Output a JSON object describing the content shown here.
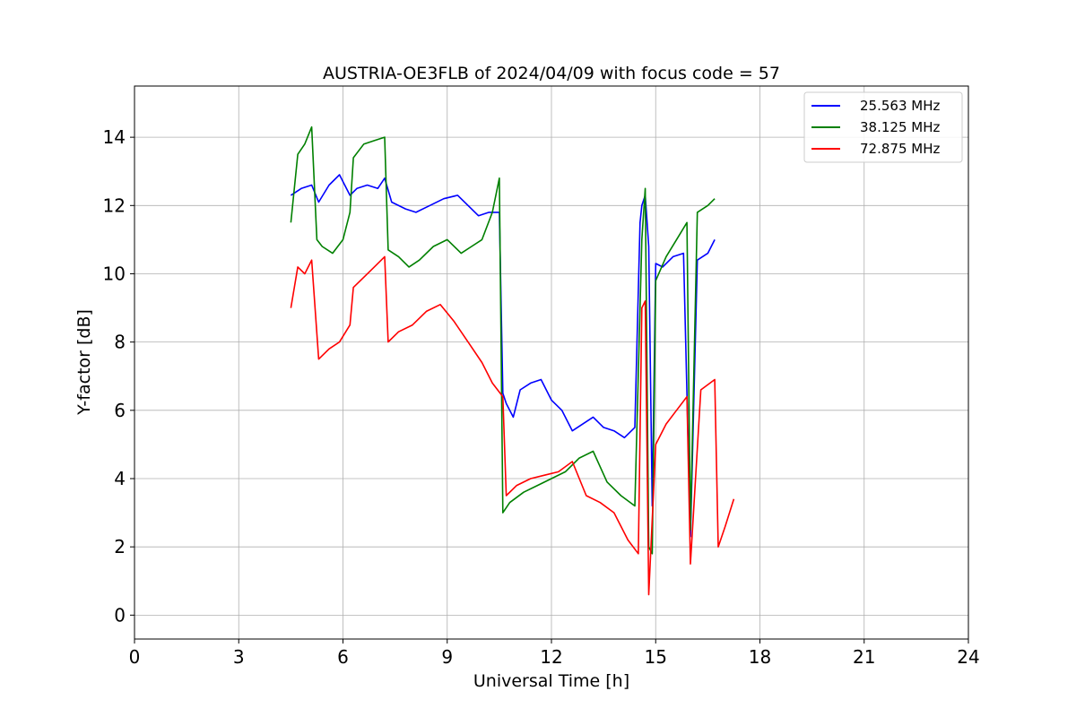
{
  "chart_data": {
    "type": "line",
    "title": "AUSTRIA-OE3FLB of 2024/04/09 with focus code = 57",
    "xlabel": "Universal Time [h]",
    "ylabel": "Y-factor [dB]",
    "xlim": [
      0,
      24
    ],
    "ylim": [
      -0.7,
      15.5
    ],
    "xticks": [
      0,
      3,
      6,
      9,
      12,
      15,
      18,
      21,
      24
    ],
    "yticks": [
      0,
      2,
      4,
      6,
      8,
      10,
      12,
      14
    ],
    "grid": true,
    "legend_position": "top-right",
    "series": [
      {
        "name": "25.563 MHz",
        "color": "#0000ff",
        "x": [
          4.5,
          4.8,
          5.1,
          5.3,
          5.6,
          5.9,
          6.2,
          6.4,
          6.7,
          7.0,
          7.2,
          7.4,
          7.8,
          8.1,
          8.5,
          8.9,
          9.3,
          9.6,
          9.9,
          10.2,
          10.5,
          10.6,
          10.7,
          10.9,
          11.1,
          11.4,
          11.7,
          12.0,
          12.3,
          12.6,
          12.9,
          13.2,
          13.5,
          13.8,
          14.1,
          14.4,
          14.55,
          14.6,
          14.7,
          14.8,
          14.9,
          15.0,
          15.2,
          15.5,
          15.8,
          16.0,
          16.2,
          16.5,
          16.7
        ],
        "y": [
          12.3,
          12.5,
          12.6,
          12.1,
          12.6,
          12.9,
          12.3,
          12.5,
          12.6,
          12.5,
          12.8,
          12.1,
          11.9,
          11.8,
          12.0,
          12.2,
          12.3,
          12.0,
          11.7,
          11.8,
          11.8,
          6.5,
          6.2,
          5.8,
          6.6,
          6.8,
          6.9,
          6.3,
          6.0,
          5.4,
          5.6,
          5.8,
          5.5,
          5.4,
          5.2,
          5.5,
          11.5,
          12.0,
          12.3,
          10.8,
          3.2,
          10.3,
          10.2,
          10.5,
          10.6,
          2.3,
          10.4,
          10.6,
          11.0
        ]
      },
      {
        "name": "38.125 MHz",
        "color": "#008000",
        "x": [
          4.5,
          4.7,
          4.9,
          5.1,
          5.25,
          5.4,
          5.7,
          6.0,
          6.2,
          6.3,
          6.6,
          6.9,
          7.2,
          7.3,
          7.6,
          7.9,
          8.2,
          8.6,
          9.0,
          9.4,
          9.7,
          10.0,
          10.3,
          10.5,
          10.6,
          10.8,
          11.2,
          11.6,
          12.0,
          12.4,
          12.8,
          13.2,
          13.6,
          14.0,
          14.4,
          14.6,
          14.7,
          14.8,
          14.9,
          15.0,
          15.3,
          15.6,
          15.9,
          16.0,
          16.2,
          16.5,
          16.7
        ],
        "y": [
          11.5,
          13.5,
          13.8,
          14.3,
          11.0,
          10.8,
          10.6,
          11.0,
          11.8,
          13.4,
          13.8,
          13.9,
          14.0,
          10.7,
          10.5,
          10.2,
          10.4,
          10.8,
          11.0,
          10.6,
          10.8,
          11.0,
          11.8,
          12.8,
          3.0,
          3.3,
          3.6,
          3.8,
          4.0,
          4.2,
          4.6,
          4.8,
          3.9,
          3.5,
          3.2,
          11.0,
          12.5,
          2.0,
          1.8,
          9.8,
          10.5,
          11.0,
          11.5,
          2.5,
          11.8,
          12.0,
          12.2
        ]
      },
      {
        "name": "72.875 MHz",
        "color": "#ff0000",
        "x": [
          4.5,
          4.7,
          4.9,
          5.1,
          5.3,
          5.6,
          5.9,
          6.2,
          6.3,
          6.6,
          6.9,
          7.2,
          7.3,
          7.6,
          8.0,
          8.4,
          8.8,
          9.2,
          9.6,
          10.0,
          10.3,
          10.6,
          10.7,
          11.0,
          11.4,
          11.8,
          12.2,
          12.6,
          13.0,
          13.4,
          13.8,
          14.2,
          14.5,
          14.6,
          14.7,
          14.8,
          15.0,
          15.3,
          15.6,
          15.9,
          16.0,
          16.3,
          16.7,
          16.8,
          17.0,
          17.25
        ],
        "y": [
          9.0,
          10.2,
          10.0,
          10.4,
          7.5,
          7.8,
          8.0,
          8.5,
          9.6,
          9.9,
          10.2,
          10.5,
          8.0,
          8.3,
          8.5,
          8.9,
          9.1,
          8.6,
          8.0,
          7.4,
          6.8,
          6.4,
          3.5,
          3.8,
          4.0,
          4.1,
          4.2,
          4.5,
          3.5,
          3.3,
          3.0,
          2.2,
          1.8,
          9.0,
          9.2,
          0.6,
          5.0,
          5.6,
          6.0,
          6.4,
          1.5,
          6.6,
          6.9,
          2.0,
          2.6,
          3.4
        ]
      }
    ]
  }
}
